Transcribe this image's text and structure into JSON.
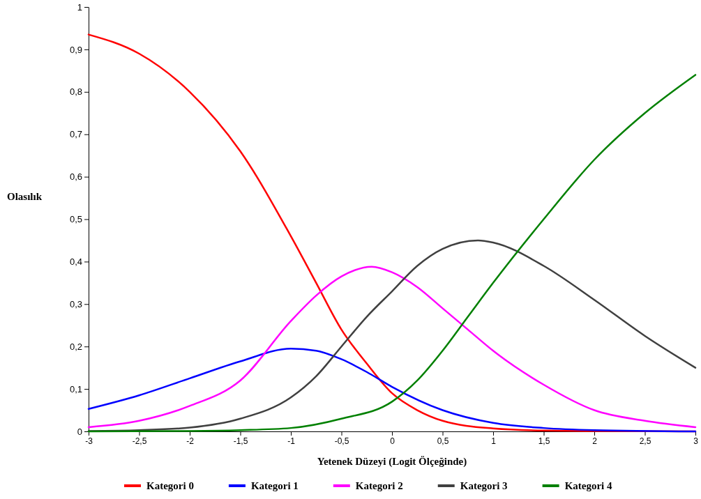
{
  "chart_data": {
    "type": "line",
    "xlabel": "Yetenek Düzeyi (Logit Ölçeğinde)",
    "ylabel": "Olasılık",
    "xlim": [
      -3,
      3
    ],
    "ylim": [
      0,
      1
    ],
    "xticks": [
      {
        "value": -3,
        "label": "-3"
      },
      {
        "value": -2.5,
        "label": "-2,5"
      },
      {
        "value": -2,
        "label": "-2"
      },
      {
        "value": -1.5,
        "label": "-1,5"
      },
      {
        "value": -1,
        "label": "-1"
      },
      {
        "value": -0.5,
        "label": "-0,5"
      },
      {
        "value": 0,
        "label": "0"
      },
      {
        "value": 0.5,
        "label": "0,5"
      },
      {
        "value": 1,
        "label": "1"
      },
      {
        "value": 1.5,
        "label": "1,5"
      },
      {
        "value": 2,
        "label": "2"
      },
      {
        "value": 2.5,
        "label": "2,5"
      },
      {
        "value": 3,
        "label": "3"
      }
    ],
    "yticks": [
      {
        "value": 0,
        "label": "0"
      },
      {
        "value": 0.1,
        "label": "0,1"
      },
      {
        "value": 0.2,
        "label": "0,2"
      },
      {
        "value": 0.3,
        "label": "0,3"
      },
      {
        "value": 0.4,
        "label": "0,4"
      },
      {
        "value": 0.5,
        "label": "0,5"
      },
      {
        "value": 0.6,
        "label": "0,6"
      },
      {
        "value": 0.7,
        "label": "0,7"
      },
      {
        "value": 0.8,
        "label": "0,8"
      },
      {
        "value": 0.9,
        "label": "0,9"
      },
      {
        "value": 1,
        "label": "1"
      }
    ],
    "grid": false,
    "legend": "bottom",
    "marker": "none",
    "line_style": "solid",
    "series": [
      {
        "name": "Kategori 0",
        "color": "#ff0000",
        "x": [
          -3,
          -2.5,
          -2,
          -1.5,
          -1,
          -0.75,
          -0.5,
          -0.25,
          0,
          0.25,
          0.5,
          1,
          1.5,
          2,
          3
        ],
        "values": [
          0.935,
          0.89,
          0.8,
          0.66,
          0.46,
          0.35,
          0.24,
          0.16,
          0.09,
          0.05,
          0.025,
          0.007,
          0.002,
          0.001,
          0
        ]
      },
      {
        "name": "Kategori 1",
        "color": "#0000ff",
        "x": [
          -3,
          -2.5,
          -2,
          -1.5,
          -1,
          -0.75,
          -0.5,
          -0.25,
          0,
          0.5,
          1,
          1.5,
          2,
          3
        ],
        "values": [
          0.053,
          0.085,
          0.125,
          0.165,
          0.195,
          0.19,
          0.17,
          0.14,
          0.105,
          0.05,
          0.02,
          0.008,
          0.003,
          0
        ]
      },
      {
        "name": "Kategori 2",
        "color": "#ff00ff",
        "x": [
          -3,
          -2.5,
          -2,
          -1.5,
          -1,
          -0.75,
          -0.5,
          -0.2,
          0,
          0.25,
          0.5,
          0.75,
          1,
          1.5,
          2,
          2.5,
          3
        ],
        "values": [
          0.01,
          0.025,
          0.06,
          0.12,
          0.26,
          0.32,
          0.365,
          0.388,
          0.375,
          0.34,
          0.29,
          0.24,
          0.19,
          0.11,
          0.05,
          0.025,
          0.01
        ]
      },
      {
        "name": "Kategori 3",
        "color": "#404040",
        "x": [
          -3,
          -2.5,
          -2,
          -1.5,
          -1,
          -0.75,
          -0.5,
          -0.25,
          0,
          0.25,
          0.5,
          0.85,
          1,
          1.5,
          2,
          2.5,
          3
        ],
        "values": [
          0.001,
          0.003,
          0.009,
          0.03,
          0.08,
          0.13,
          0.2,
          0.27,
          0.33,
          0.39,
          0.43,
          0.45,
          0.445,
          0.39,
          0.31,
          0.225,
          0.15
        ]
      },
      {
        "name": "Kategori 4",
        "color": "#008000",
        "x": [
          -3,
          -2,
          -1.5,
          -1,
          -0.5,
          0,
          0.25,
          0.5,
          0.75,
          1,
          1.5,
          2,
          2.5,
          3
        ],
        "values": [
          0,
          0.001,
          0.003,
          0.008,
          0.03,
          0.07,
          0.12,
          0.19,
          0.27,
          0.35,
          0.5,
          0.64,
          0.75,
          0.84
        ]
      }
    ]
  }
}
